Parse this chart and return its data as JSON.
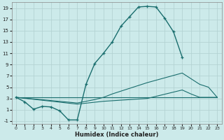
{
  "xlabel": "Humidex (Indice chaleur)",
  "background_color": "#cceaea",
  "grid_color": "#b0d0d0",
  "line_color": "#1a6e6e",
  "xlim": [
    -0.5,
    23.5
  ],
  "ylim": [
    -1.5,
    20
  ],
  "yticks": [
    -1,
    1,
    3,
    5,
    7,
    9,
    11,
    13,
    15,
    17,
    19
  ],
  "xticks": [
    0,
    1,
    2,
    3,
    4,
    5,
    6,
    7,
    8,
    9,
    10,
    11,
    12,
    13,
    14,
    15,
    16,
    17,
    18,
    19,
    20,
    21,
    22,
    23
  ],
  "series": [
    {
      "x": [
        0,
        1,
        2,
        3,
        4,
        5,
        6,
        7,
        8,
        9,
        10,
        11,
        12,
        13,
        14,
        15,
        16,
        17,
        18,
        19
      ],
      "y": [
        3.2,
        2.4,
        1.1,
        1.6,
        1.5,
        0.8,
        -0.8,
        -0.8,
        5.5,
        9.2,
        11.0,
        13.0,
        15.8,
        17.5,
        19.2,
        19.3,
        19.2,
        17.2,
        14.8,
        10.3
      ],
      "marker": true,
      "linewidth": 1.0
    },
    {
      "x": [
        0,
        23
      ],
      "y": [
        3.2,
        3.2
      ],
      "marker": false,
      "linewidth": 0.8
    },
    {
      "x": [
        0,
        7,
        9,
        10,
        11,
        12,
        13,
        14,
        15,
        19,
        20,
        21,
        22,
        23
      ],
      "y": [
        3.2,
        2.2,
        2.8,
        3.2,
        3.8,
        4.3,
        4.8,
        5.3,
        5.8,
        7.5,
        6.5,
        5.5,
        5.0,
        3.2
      ],
      "marker": false,
      "linewidth": 0.8
    },
    {
      "x": [
        0,
        7,
        10,
        15,
        19,
        20,
        21,
        22,
        23
      ],
      "y": [
        3.2,
        2.0,
        2.5,
        3.0,
        4.5,
        3.8,
        3.2,
        3.2,
        3.2
      ],
      "marker": false,
      "linewidth": 0.8
    }
  ]
}
